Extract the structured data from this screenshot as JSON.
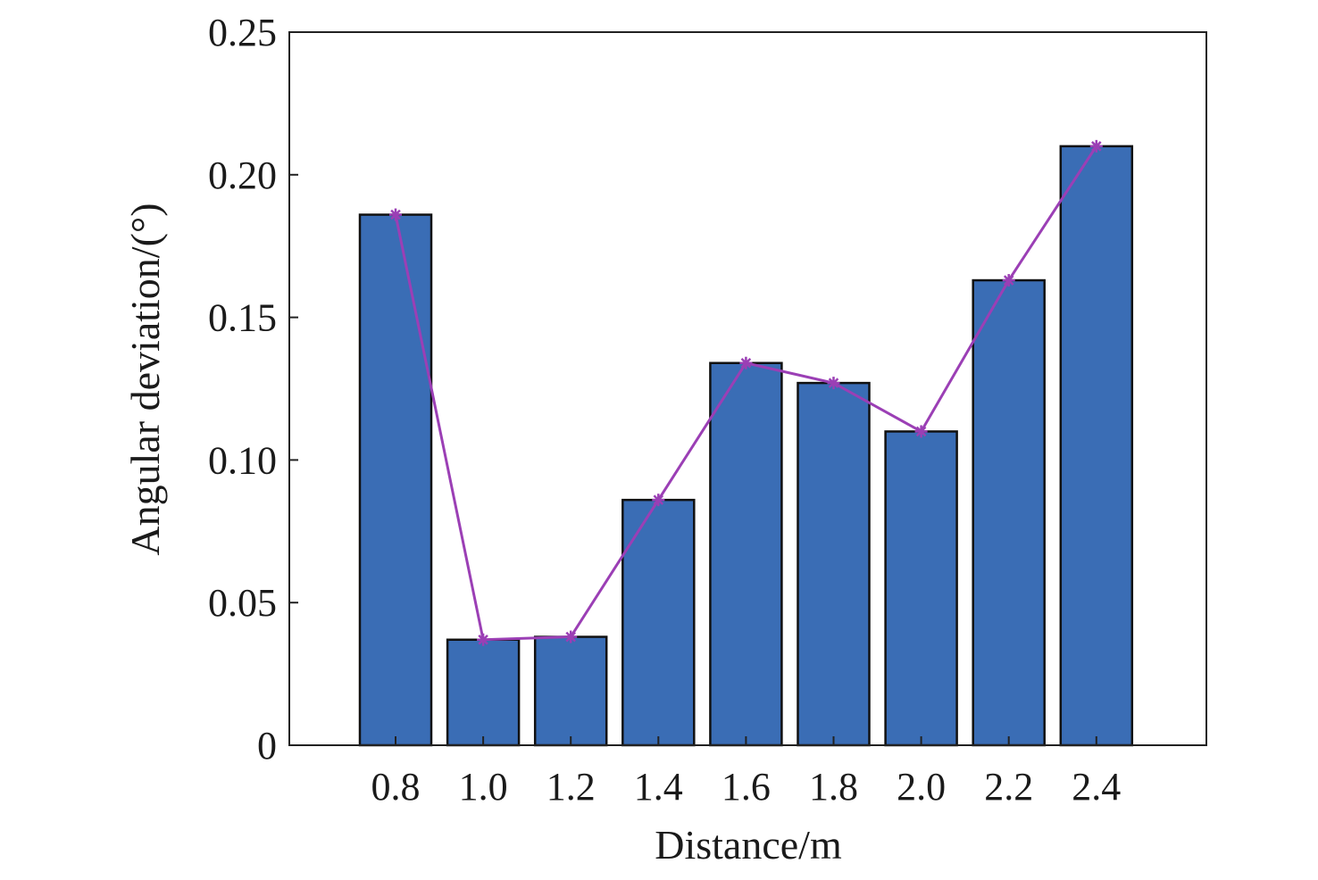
{
  "chart_data": {
    "type": "bar",
    "title": "",
    "xlabel": "Distance/m",
    "ylabel": "Angular deviation/(°)",
    "categories": [
      "0.8",
      "1.0",
      "1.2",
      "1.4",
      "1.6",
      "1.8",
      "2.0",
      "2.2",
      "2.4"
    ],
    "values": [
      0.186,
      0.037,
      0.038,
      0.086,
      0.134,
      0.127,
      0.11,
      0.163,
      0.21
    ],
    "overlay_line": {
      "values": [
        0.186,
        0.037,
        0.038,
        0.086,
        0.134,
        0.127,
        0.11,
        0.163,
        0.21
      ],
      "marker": "asterisk"
    },
    "ylim": [
      0,
      0.25
    ],
    "yticks": [
      {
        "value": 0,
        "label": "0"
      },
      {
        "value": 0.05,
        "label": "0.05"
      },
      {
        "value": 0.1,
        "label": "0.10"
      },
      {
        "value": 0.15,
        "label": "0.15"
      },
      {
        "value": 0.2,
        "label": "0.20"
      },
      {
        "value": 0.25,
        "label": "0.25"
      }
    ],
    "grid": false,
    "legend": "none",
    "colors": {
      "bar_fill": "#3a6db5",
      "bar_stroke": "#111111",
      "line": "#9b3fb5",
      "axis": "#222222"
    }
  }
}
